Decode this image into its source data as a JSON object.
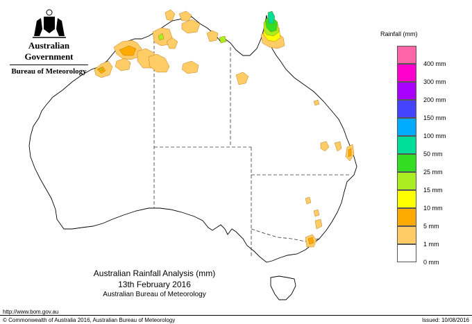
{
  "header": {
    "gov_title": "Australian Government",
    "bureau": "Bureau of Meteorology"
  },
  "legend": {
    "title": "Rainfall (mm)",
    "items": [
      {
        "label": "",
        "color": "#ff66aa"
      },
      {
        "label": "400 mm",
        "color": "#ff00cc"
      },
      {
        "label": "300 mm",
        "color": "#aa00ff"
      },
      {
        "label": "200 mm",
        "color": "#4444ff"
      },
      {
        "label": "150 mm",
        "color": "#00aaff"
      },
      {
        "label": "100 mm",
        "color": "#00dd99"
      },
      {
        "label": "50 mm",
        "color": "#33dd22"
      },
      {
        "label": "25 mm",
        "color": "#aaee22"
      },
      {
        "label": "15 mm",
        "color": "#ffff00"
      },
      {
        "label": "10 mm",
        "color": "#ffaa00"
      },
      {
        "label": "5 mm",
        "color": "#ffcc66"
      },
      {
        "label": "1 mm",
        "color": "#ffffff"
      },
      {
        "label": "0 mm",
        "color": ""
      }
    ]
  },
  "map": {
    "title": "Australian Rainfall Analysis (mm)",
    "date": "13th February 2016",
    "org": "Australian Bureau of Meteorology"
  },
  "footer": {
    "url": "http://www.bom.gov.au",
    "copyright": "© Commonwealth of Australia 2016, Australian Bureau of Meteorology",
    "issued": "Issued: 10/08/2016"
  }
}
